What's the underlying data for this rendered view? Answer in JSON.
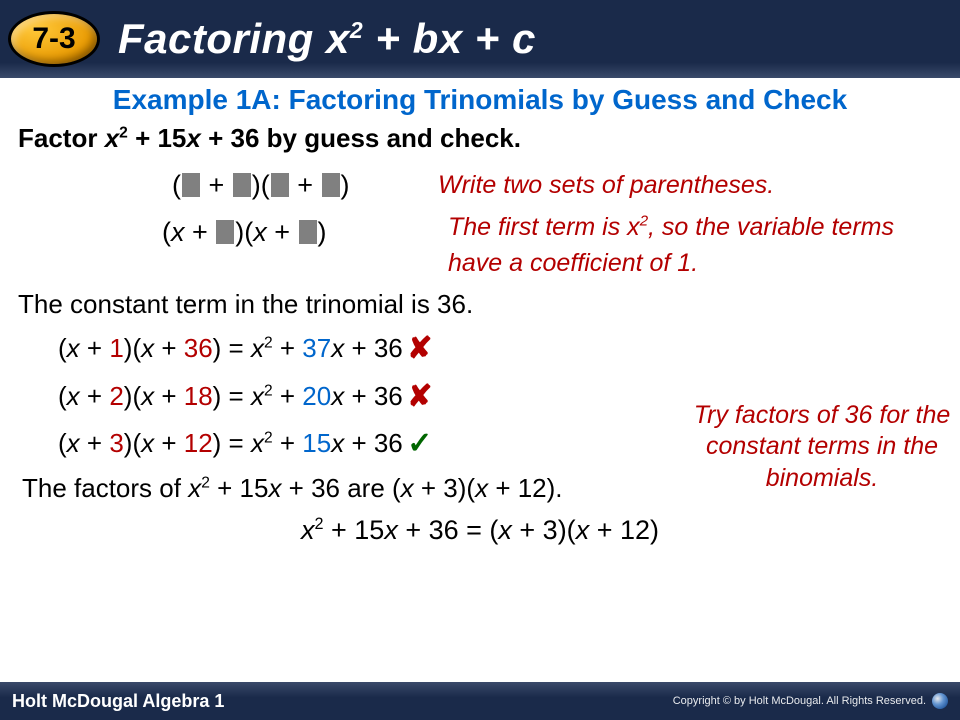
{
  "header": {
    "badge": "7-3",
    "title_prefix": "Factoring ",
    "title_var": "x",
    "title_exp": "2",
    "title_suffix": " + bx + c"
  },
  "example_title": "Example 1A: Factoring Trinomials by Guess and Check",
  "prompt": {
    "p1": "Factor ",
    "var1": "x",
    "exp1": "2",
    "p2": " + 15",
    "var2": "x",
    "p3": " + 36 by guess and check."
  },
  "note1": "Write two sets of parentheses.",
  "note2a": "The first term is x",
  "note2exp": "2",
  "note2b": ", so the variable terms have a coefficient of 1.",
  "constant_line": "The constant term in the trinomial is 36.",
  "trials": [
    {
      "a": "1",
      "b": "36",
      "mid": "37",
      "mark": "✘"
    },
    {
      "a": "2",
      "b": "18",
      "mid": "20",
      "mark": "✘"
    },
    {
      "a": "3",
      "b": "12",
      "mid": "15",
      "mark": "✓"
    }
  ],
  "try_note": "Try factors of 36 for the constant terms in the binomials.",
  "factors_line": {
    "p1": "The factors of ",
    "var": "x",
    "exp": "2",
    "p2": " + 15",
    "p3": " + 36 are (",
    "p4": " + 3)(",
    "p5": " + 12)."
  },
  "final": {
    "var": "x",
    "exp": "2",
    "p1": " + 15",
    "p2": " + 36 = (",
    "p3": " + 3)(",
    "p4": " + 12)"
  },
  "footer": {
    "left": "Holt McDougal Algebra 1",
    "right": "Copyright © by Holt McDougal. All Rights Reserved."
  },
  "colors": {
    "header_bg": "#1a2a4a",
    "badge_grad_a": "#ffc838",
    "badge_grad_b": "#e89800",
    "accent_blue": "#0066cc",
    "accent_red": "#b30000",
    "accent_green": "#006600"
  }
}
